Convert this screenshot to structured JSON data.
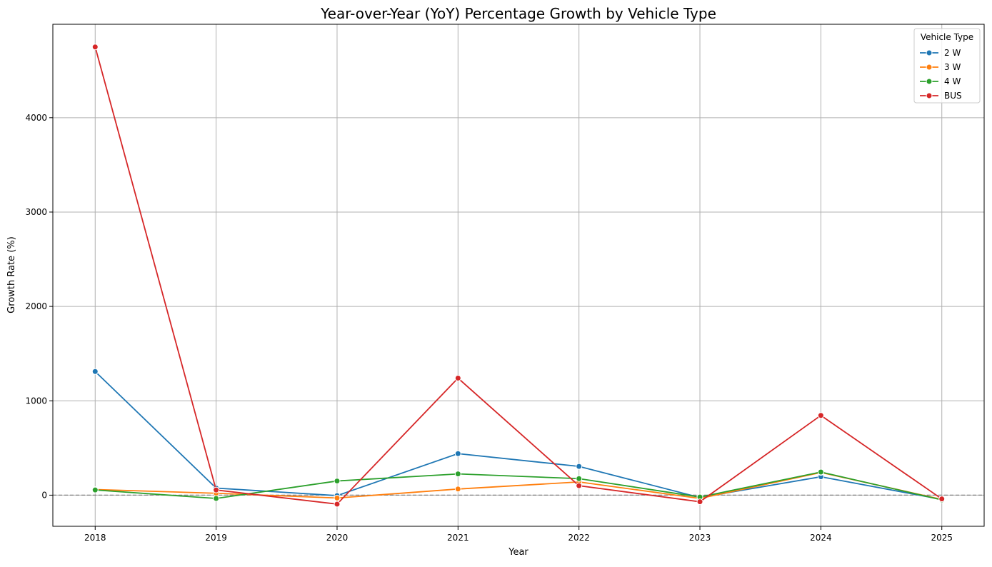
{
  "chart_data": {
    "type": "line",
    "title": "Year-over-Year (YoY) Percentage Growth by Vehicle Type",
    "xlabel": "Year",
    "ylabel": "Growth Rate (%)",
    "x": [
      "2018",
      "2019",
      "2020",
      "2021",
      "2022",
      "2023",
      "2024",
      "2025"
    ],
    "xlim": [
      2017.65,
      2025.35
    ],
    "ylim": [
      -330,
      4990
    ],
    "yticks": [
      0,
      1000,
      2000,
      3000,
      4000
    ],
    "grid": true,
    "reference_line": {
      "y": 0,
      "style": "dashed",
      "color": "#808080"
    },
    "legend": {
      "title": "Vehicle Type",
      "placement": "top-right"
    },
    "series": [
      {
        "name": "2 W",
        "color": "#1f77b4",
        "values": [
          1310,
          75,
          -5,
          440,
          305,
          -25,
          195,
          -45
        ]
      },
      {
        "name": "3 W",
        "color": "#ff7f0e",
        "values": [
          60,
          20,
          -30,
          65,
          140,
          -35,
          240,
          -45
        ]
      },
      {
        "name": "4 W",
        "color": "#2ca02c",
        "values": [
          55,
          -35,
          150,
          225,
          175,
          -20,
          245,
          -50
        ]
      },
      {
        "name": "BUS",
        "color": "#d62728",
        "values": [
          4750,
          55,
          -95,
          1240,
          100,
          -70,
          845,
          -40
        ]
      }
    ]
  }
}
